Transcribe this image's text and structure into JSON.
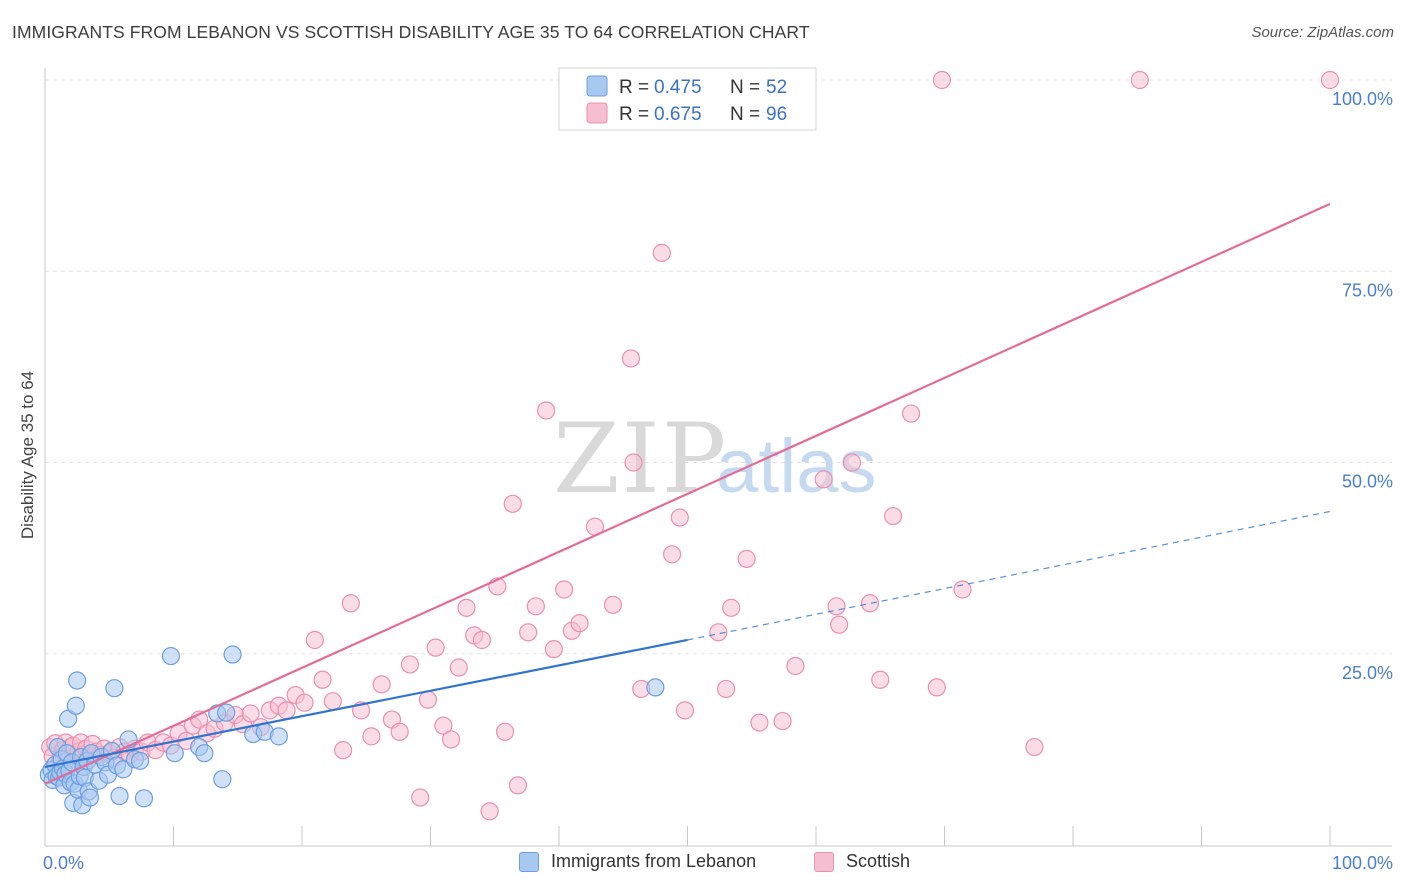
{
  "title": "IMMIGRANTS FROM LEBANON VS SCOTTISH DISABILITY AGE 35 TO 64 CORRELATION CHART",
  "source": "Source: ZipAtlas.com",
  "watermark": {
    "part1": "ZIP",
    "part2": "atlas"
  },
  "colors": {
    "blue_fill": "#a9c8f0",
    "blue_stroke": "#6c9fe0",
    "blue_line": "#2f74d0",
    "pink_fill": "#f6bfd1",
    "pink_stroke": "#ec8fb0",
    "pink_line": "#e56b98",
    "axis_label": "#4a7fc9",
    "grid": "#e3e3e3"
  },
  "chart_data": {
    "type": "scatter",
    "title": "IMMIGRANTS FROM LEBANON VS SCOTTISH DISABILITY AGE 35 TO 64 CORRELATION CHART",
    "xlabel": "",
    "ylabel": "Disability Age 35 to 64",
    "xlim": [
      0,
      100
    ],
    "ylim": [
      0,
      100
    ],
    "x_tick_labels": [
      "0.0%",
      "100.0%"
    ],
    "y_tick_labels": [
      "25.0%",
      "50.0%",
      "75.0%",
      "100.0%"
    ],
    "y_ticks": [
      25,
      50,
      75,
      100
    ],
    "grid": true,
    "legend_position": "top-center",
    "legend": [
      {
        "series": "Immigrants from Lebanon",
        "r_label": "R =",
        "r_value": "0.475",
        "n_label": "N =",
        "n_value": "52"
      },
      {
        "series": "Scottish",
        "r_label": "R =",
        "r_value": "0.675",
        "n_label": "N =",
        "n_value": "96"
      }
    ],
    "series": [
      {
        "name": "Immigrants from Lebanon",
        "color": "#6c9fe0",
        "trendline": {
          "x": [
            0,
            50
          ],
          "y": [
            10.2,
            26.8
          ],
          "dashed_extension_to_x": 100,
          "dashed_extension_y": 43.6
        },
        "points": [
          [
            0.3,
            9.2
          ],
          [
            0.5,
            9.8
          ],
          [
            0.6,
            8.5
          ],
          [
            0.8,
            10.5
          ],
          [
            0.9,
            9.0
          ],
          [
            1.0,
            12.8
          ],
          [
            1.1,
            8.8
          ],
          [
            1.2,
            9.5
          ],
          [
            1.3,
            11.2
          ],
          [
            1.4,
            10.0
          ],
          [
            1.5,
            7.8
          ],
          [
            1.6,
            9.3
          ],
          [
            1.7,
            12.0
          ],
          [
            1.8,
            16.5
          ],
          [
            1.9,
            9.7
          ],
          [
            2.0,
            8.2
          ],
          [
            2.1,
            10.8
          ],
          [
            2.2,
            5.5
          ],
          [
            2.3,
            8.0
          ],
          [
            2.4,
            18.2
          ],
          [
            2.5,
            21.5
          ],
          [
            2.6,
            7.2
          ],
          [
            2.7,
            9.0
          ],
          [
            2.8,
            11.5
          ],
          [
            2.9,
            5.2
          ],
          [
            3.0,
            10.2
          ],
          [
            3.1,
            8.8
          ],
          [
            3.3,
            11.0
          ],
          [
            3.4,
            7.0
          ],
          [
            3.5,
            6.2
          ],
          [
            3.6,
            12.0
          ],
          [
            3.9,
            10.5
          ],
          [
            4.2,
            8.4
          ],
          [
            4.4,
            11.5
          ],
          [
            4.7,
            10.8
          ],
          [
            4.9,
            9.2
          ],
          [
            5.2,
            12.3
          ],
          [
            5.4,
            20.5
          ],
          [
            5.6,
            10.4
          ],
          [
            5.8,
            6.4
          ],
          [
            6.1,
            9.9
          ],
          [
            6.5,
            13.8
          ],
          [
            7.0,
            11.2
          ],
          [
            7.4,
            11.0
          ],
          [
            7.7,
            6.1
          ],
          [
            9.8,
            24.7
          ],
          [
            10.1,
            12.0
          ],
          [
            12.0,
            12.8
          ],
          [
            12.4,
            12.0
          ],
          [
            13.4,
            17.2
          ],
          [
            13.8,
            8.6
          ],
          [
            14.1,
            17.3
          ],
          [
            14.6,
            24.9
          ],
          [
            16.2,
            14.5
          ],
          [
            17.1,
            14.8
          ],
          [
            18.2,
            14.2
          ],
          [
            47.5,
            20.6
          ]
        ]
      },
      {
        "name": "Scottish",
        "color": "#ec8fb0",
        "trendline": {
          "x": [
            0,
            100
          ],
          "y": [
            8.0,
            83.8
          ]
        },
        "points": [
          [
            0.4,
            12.8
          ],
          [
            0.6,
            11.6
          ],
          [
            0.8,
            13.3
          ],
          [
            1.0,
            10.4
          ],
          [
            1.2,
            11.4
          ],
          [
            1.4,
            12.4
          ],
          [
            1.6,
            13.4
          ],
          [
            1.8,
            11.4
          ],
          [
            2.0,
            12.8
          ],
          [
            2.2,
            13.0
          ],
          [
            2.4,
            11.2
          ],
          [
            2.6,
            12.2
          ],
          [
            2.8,
            13.4
          ],
          [
            3.0,
            11.8
          ],
          [
            3.2,
            12.6
          ],
          [
            3.4,
            11.6
          ],
          [
            3.7,
            13.2
          ],
          [
            4.0,
            12.2
          ],
          [
            4.3,
            11.8
          ],
          [
            4.6,
            12.6
          ],
          [
            5.0,
            12.0
          ],
          [
            5.4,
            11.4
          ],
          [
            5.8,
            12.8
          ],
          [
            6.2,
            12.2
          ],
          [
            6.6,
            11.8
          ],
          [
            7.0,
            12.6
          ],
          [
            7.5,
            12.2
          ],
          [
            8.0,
            13.4
          ],
          [
            8.6,
            12.4
          ],
          [
            9.2,
            13.4
          ],
          [
            9.8,
            13.0
          ],
          [
            10.4,
            14.6
          ],
          [
            11.0,
            13.6
          ],
          [
            11.5,
            15.6
          ],
          [
            12.0,
            16.4
          ],
          [
            12.6,
            14.6
          ],
          [
            13.2,
            15.2
          ],
          [
            14.0,
            16.0
          ],
          [
            14.8,
            17.0
          ],
          [
            15.4,
            15.8
          ],
          [
            16.0,
            17.2
          ],
          [
            16.8,
            15.4
          ],
          [
            17.5,
            17.6
          ],
          [
            18.2,
            18.2
          ],
          [
            18.8,
            17.6
          ],
          [
            19.5,
            19.6
          ],
          [
            20.2,
            18.6
          ],
          [
            21.0,
            26.8
          ],
          [
            21.6,
            21.6
          ],
          [
            22.4,
            18.8
          ],
          [
            23.2,
            12.4
          ],
          [
            23.8,
            31.6
          ],
          [
            24.6,
            17.6
          ],
          [
            25.4,
            14.2
          ],
          [
            26.2,
            21.0
          ],
          [
            27.0,
            16.4
          ],
          [
            27.6,
            14.8
          ],
          [
            28.4,
            23.6
          ],
          [
            29.2,
            6.2
          ],
          [
            29.8,
            19.0
          ],
          [
            30.4,
            25.8
          ],
          [
            31.0,
            15.6
          ],
          [
            31.6,
            13.8
          ],
          [
            32.2,
            23.2
          ],
          [
            32.8,
            31.0
          ],
          [
            33.4,
            27.4
          ],
          [
            34.0,
            26.8
          ],
          [
            34.6,
            4.4
          ],
          [
            35.2,
            33.8
          ],
          [
            35.8,
            14.8
          ],
          [
            36.4,
            44.6
          ],
          [
            36.8,
            7.8
          ],
          [
            37.6,
            27.8
          ],
          [
            38.2,
            31.2
          ],
          [
            39.0,
            56.8
          ],
          [
            39.6,
            25.6
          ],
          [
            40.4,
            33.4
          ],
          [
            41.0,
            28.0
          ],
          [
            41.6,
            29.0
          ],
          [
            42.8,
            41.6
          ],
          [
            44.2,
            31.4
          ],
          [
            45.6,
            63.6
          ],
          [
            45.8,
            50.0
          ],
          [
            46.4,
            20.4
          ],
          [
            48.0,
            77.4
          ],
          [
            48.8,
            38.0
          ],
          [
            49.4,
            42.8
          ],
          [
            49.8,
            17.6
          ],
          [
            50.6,
            100.0
          ],
          [
            52.4,
            27.8
          ],
          [
            53.0,
            20.4
          ],
          [
            53.4,
            31.0
          ],
          [
            54.6,
            37.4
          ],
          [
            55.6,
            16.0
          ],
          [
            57.4,
            16.2
          ],
          [
            58.4,
            23.4
          ],
          [
            60.6,
            47.8
          ],
          [
            61.6,
            31.2
          ],
          [
            61.8,
            28.8
          ],
          [
            62.8,
            50.0
          ],
          [
            64.2,
            31.6
          ],
          [
            65.0,
            21.6
          ],
          [
            66.0,
            43.0
          ],
          [
            67.4,
            56.4
          ],
          [
            69.4,
            20.6
          ],
          [
            69.8,
            100.0
          ],
          [
            71.4,
            33.4
          ],
          [
            77.0,
            12.8
          ],
          [
            85.2,
            100.0
          ],
          [
            100.0,
            100.0
          ]
        ]
      }
    ]
  },
  "bottom_legend": {
    "item1": "Immigrants from Lebanon",
    "item2": "Scottish"
  }
}
